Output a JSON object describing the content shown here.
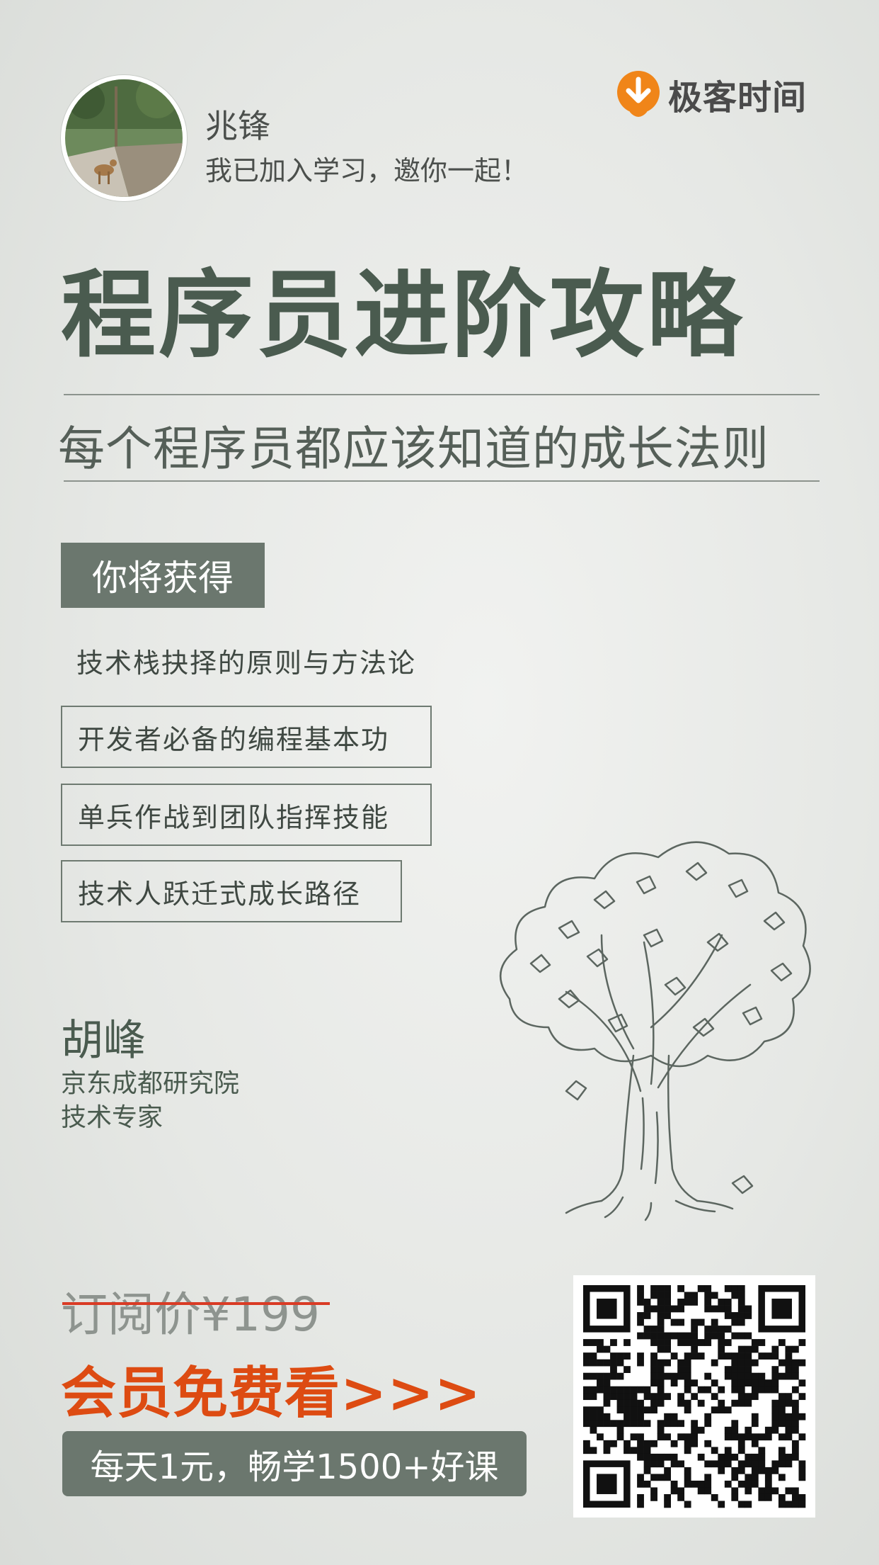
{
  "header": {
    "username": "兆锋",
    "invite_text": "我已加入学习，邀你一起！",
    "brand_name": "极客时间"
  },
  "course": {
    "title": "程序员进阶攻略",
    "subtitle": "每个程序员都应该知道的成长法则"
  },
  "benefits": {
    "heading": "你将获得",
    "items": [
      "技术栈抉择的原则与方法论",
      "开发者必备的编程基本功",
      "单兵作战到团队指挥技能",
      "技术人跃迁式成长路径"
    ]
  },
  "author": {
    "name": "胡峰",
    "organization": "京东成都研究院",
    "role": "技术专家"
  },
  "pricing": {
    "original_price": "订阅价¥199",
    "cta": "会员免费看>>>",
    "promo": "每天1元，畅学1500+好课"
  },
  "colors": {
    "brand_orange": "#f08519",
    "accent_green": "#6b776e",
    "cta_orange": "#dd4b12",
    "strike_red": "#d93b25"
  },
  "icons": {
    "brand_logo": "geek-time-logo-icon",
    "avatar": "deer-photo-avatar",
    "illustration": "tree-sketch-illustration",
    "qr": "qr-code-icon"
  }
}
